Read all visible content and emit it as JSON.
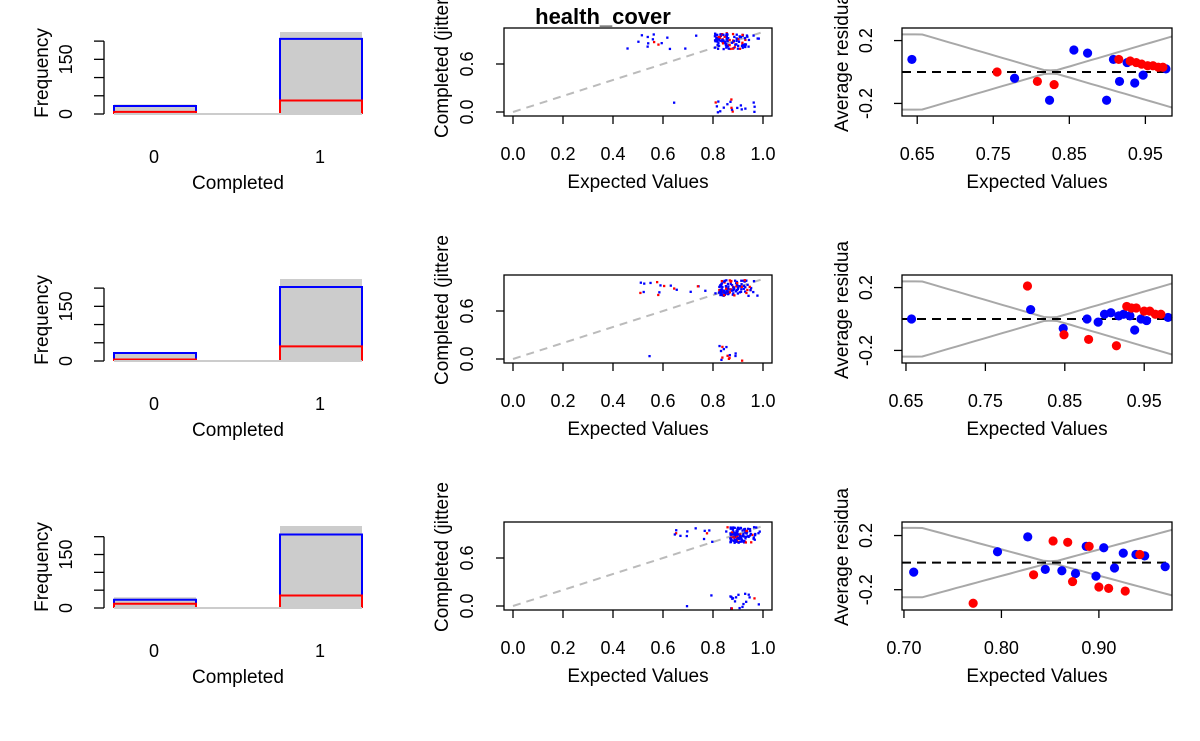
{
  "figure_title": "health_cover",
  "colors": {
    "observed_fill": "#cccccc",
    "sim_blue": "#0000ff",
    "sim_red": "#ff0000",
    "band": "#a8a8a8",
    "ref_line": "#bbbbbb"
  },
  "chart_data": [
    {
      "type": "bar",
      "categories": [
        "0",
        "1"
      ],
      "series": [
        {
          "values": [
            26,
            225
          ]
        },
        {
          "values": [
            22,
            206
          ]
        },
        {
          "values": [
            6,
            37
          ]
        }
      ],
      "xlabel": "Completed",
      "ylabel": "Frequency",
      "ylim": [
        0,
        225
      ],
      "yticks": [
        "0",
        "50",
        "100",
        "150",
        "200"
      ],
      "ytick_labels_shown": [
        "0",
        "150"
      ]
    },
    {
      "type": "scatter",
      "xlabel": "Expected Values",
      "ylabel": "Completed (jittere",
      "xlim": [
        0,
        1
      ],
      "ylim": [
        -0.05,
        1.05
      ],
      "xticks": [
        "0.0",
        "0.2",
        "0.4",
        "0.6",
        "0.8",
        "1.0"
      ],
      "yticks": [
        "0.0",
        "0.6"
      ],
      "reference_line": "y = x (dashed)",
      "x_range_of_points": [
        0.45,
        0.99
      ]
    },
    {
      "type": "scatter",
      "xlabel": "Expected Values",
      "ylabel": "Average residua",
      "xlim": [
        0.63,
        0.985
      ],
      "ylim": [
        -0.28,
        0.28
      ],
      "xticks": [
        "0.65",
        "0.75",
        "0.85",
        "0.95"
      ],
      "yticks": [
        "-0.2",
        "0.2"
      ],
      "reference_line": "y = 0 (dashed)",
      "series": [
        {
          "color": "blue",
          "x": [
            0.643,
            0.778,
            0.824,
            0.856,
            0.874,
            0.899,
            0.908,
            0.916,
            0.926,
            0.936,
            0.947,
            0.977
          ],
          "y": [
            0.08,
            -0.04,
            -0.18,
            0.14,
            0.12,
            -0.18,
            0.08,
            -0.06,
            0.06,
            -0.07,
            -0.02,
            0.02
          ]
        },
        {
          "color": "red",
          "x": [
            0.755,
            0.808,
            0.83,
            0.915,
            0.93,
            0.938,
            0.945,
            0.953,
            0.96,
            0.967,
            0.973
          ],
          "y": [
            0.0,
            -0.06,
            -0.08,
            0.08,
            0.07,
            0.06,
            0.05,
            0.04,
            0.04,
            0.03,
            0.03
          ]
        }
      ]
    },
    {
      "type": "bar",
      "categories": [
        "0",
        "1"
      ],
      "series": [
        {
          "values": [
            22,
            225
          ]
        },
        {
          "values": [
            22,
            203
          ]
        },
        {
          "values": [
            4,
            40
          ]
        }
      ],
      "xlabel": "Completed",
      "ylabel": "Frequency",
      "ylim": [
        0,
        225
      ],
      "yticks": [
        "0",
        "50",
        "100",
        "150",
        "200"
      ],
      "ytick_labels_shown": [
        "0",
        "150"
      ]
    },
    {
      "type": "scatter",
      "xlabel": "Expected Values",
      "ylabel": "Completed (jittere",
      "xlim": [
        0,
        1
      ],
      "ylim": [
        -0.05,
        1.05
      ],
      "xticks": [
        "0.0",
        "0.2",
        "0.4",
        "0.6",
        "0.8",
        "1.0"
      ],
      "yticks": [
        "0.0",
        "0.6"
      ],
      "reference_line": "y = x (dashed)",
      "x_range_of_points": [
        0.5,
        0.99
      ]
    },
    {
      "type": "scatter",
      "xlabel": "Expected Values",
      "ylabel": "Average residua",
      "xlim": [
        0.645,
        0.985
      ],
      "ylim": [
        -0.28,
        0.28
      ],
      "xticks": [
        "0.65",
        "0.75",
        "0.85",
        "0.95"
      ],
      "yticks": [
        "-0.2",
        "0.2"
      ],
      "reference_line": "y = 0 (dashed)",
      "series": [
        {
          "color": "blue",
          "x": [
            0.657,
            0.807,
            0.848,
            0.878,
            0.892,
            0.9,
            0.908,
            0.918,
            0.924,
            0.932,
            0.938,
            0.946,
            0.953,
            0.98
          ],
          "y": [
            0.0,
            0.06,
            -0.06,
            0.0,
            -0.02,
            0.03,
            0.04,
            0.02,
            0.03,
            0.02,
            -0.07,
            0.0,
            -0.01,
            0.01
          ]
        },
        {
          "color": "red",
          "x": [
            0.803,
            0.849,
            0.88,
            0.915,
            0.928,
            0.934,
            0.94,
            0.95,
            0.957,
            0.964,
            0.971
          ],
          "y": [
            0.21,
            -0.1,
            -0.13,
            -0.17,
            0.08,
            0.07,
            0.07,
            0.05,
            0.05,
            0.03,
            0.03
          ]
        }
      ]
    },
    {
      "type": "bar",
      "categories": [
        "0",
        "1"
      ],
      "series": [
        {
          "values": [
            30,
            230
          ]
        },
        {
          "values": [
            23,
            206
          ]
        },
        {
          "values": [
            12,
            35
          ]
        }
      ],
      "xlabel": "Completed",
      "ylabel": "Frequency",
      "ylim": [
        0,
        230
      ],
      "yticks": [
        "0",
        "50",
        "100",
        "150",
        "200"
      ],
      "ytick_labels_shown": [
        "0",
        "150"
      ]
    },
    {
      "type": "scatter",
      "xlabel": "Expected Values",
      "ylabel": "Completed (jittere",
      "xlim": [
        0,
        1
      ],
      "ylim": [
        -0.05,
        1.05
      ],
      "xticks": [
        "0.0",
        "0.2",
        "0.4",
        "0.6",
        "0.8",
        "1.0"
      ],
      "yticks": [
        "0.0",
        "0.6"
      ],
      "reference_line": "y = x (dashed)",
      "x_range_of_points": [
        0.63,
        0.99
      ]
    },
    {
      "type": "scatter",
      "xlabel": "Expected Values",
      "ylabel": "Average residua",
      "xlim": [
        0.698,
        0.975
      ],
      "ylim": [
        -0.35,
        0.3
      ],
      "xticks": [
        "0.70",
        "0.80",
        "0.90"
      ],
      "yticks": [
        "-0.2",
        "0.2"
      ],
      "reference_line": "y = 0 (dashed)",
      "series": [
        {
          "color": "blue",
          "x": [
            0.71,
            0.796,
            0.827,
            0.845,
            0.862,
            0.876,
            0.887,
            0.897,
            0.905,
            0.916,
            0.925,
            0.938,
            0.947,
            0.968
          ],
          "y": [
            -0.07,
            0.08,
            0.19,
            -0.05,
            -0.06,
            -0.08,
            0.12,
            -0.1,
            0.11,
            -0.04,
            0.07,
            0.06,
            0.05,
            -0.03
          ]
        },
        {
          "color": "red",
          "x": [
            0.771,
            0.833,
            0.853,
            0.868,
            0.873,
            0.89,
            0.9,
            0.91,
            0.927,
            0.942
          ],
          "y": [
            -0.3,
            -0.09,
            0.16,
            0.15,
            -0.14,
            0.12,
            -0.18,
            -0.19,
            -0.21,
            0.06
          ]
        }
      ]
    }
  ]
}
